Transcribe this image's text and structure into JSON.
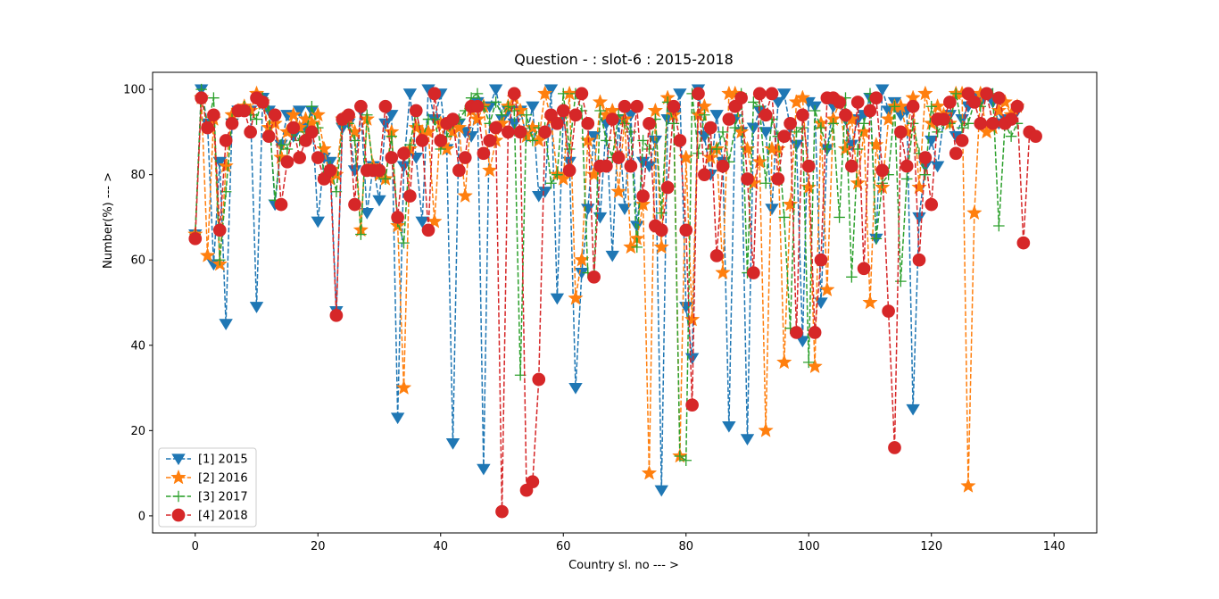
{
  "chart_data": {
    "type": "line",
    "title": "Question - : slot-6 : 2015-2018",
    "xlabel": "Country sl. no --- >",
    "ylabel": "Number(%) --- >",
    "xlim": [
      -6.95,
      146.95
    ],
    "ylim": [
      -4,
      104
    ],
    "xticks": [
      0,
      20,
      40,
      60,
      80,
      100,
      120,
      140
    ],
    "yticks": [
      0,
      20,
      40,
      60,
      80,
      100
    ],
    "legend_position": "lower-left",
    "grid": false,
    "series": [
      {
        "name": "[1] 2015",
        "color": "#1f77b4",
        "marker": "triangle-down",
        "x_start": 0,
        "values": [
          66,
          100,
          92,
          59,
          83,
          45,
          92,
          95,
          95,
          95,
          49,
          98,
          95,
          73,
          87,
          94,
          89,
          95,
          91,
          95,
          69,
          84,
          83,
          48,
          91,
          92,
          81,
          95,
          71,
          82,
          74,
          92,
          94,
          23,
          82,
          99,
          84,
          69,
          100,
          93,
          99,
          86,
          17,
          92,
          90,
          89,
          97,
          11,
          96,
          100,
          93,
          95,
          92,
          95,
          89,
          96,
          75,
          76,
          100,
          51,
          94,
          83,
          30,
          57,
          72,
          89,
          70,
          92,
          61,
          93,
          72,
          94,
          68,
          83,
          82,
          88,
          6,
          93,
          94,
          99,
          49,
          37,
          100,
          89,
          80,
          94,
          83,
          21,
          93,
          90,
          18,
          91,
          95,
          90,
          72,
          97,
          99,
          91,
          87,
          41,
          97,
          96,
          50,
          86,
          96,
          97,
          93,
          87,
          93,
          94,
          98,
          65,
          100,
          95,
          97,
          94,
          95,
          25,
          70,
          82,
          88,
          82,
          93,
          94,
          89,
          93,
          96,
          98,
          97,
          99,
          97,
          92,
          93,
          93,
          95
        ],
        "y_range": null
      },
      {
        "name": "[2] 2016",
        "color": "#ff7f0e",
        "marker": "star",
        "x_start": 0,
        "values": [
          66,
          98,
          61,
          93,
          59,
          82,
          94,
          95,
          96,
          95,
          99,
          97,
          91,
          92,
          84,
          90,
          94,
          91,
          93,
          92,
          94,
          86,
          79,
          80,
          93,
          93,
          90,
          67,
          93,
          82,
          80,
          79,
          90,
          68,
          30,
          86,
          91,
          90,
          90,
          69,
          92,
          86,
          90,
          91,
          75,
          95,
          93,
          96,
          81,
          88,
          92,
          96,
          98,
          95,
          89,
          91,
          88,
          99,
          93,
          80,
          79,
          99,
          51,
          60,
          88,
          80,
          97,
          94,
          95,
          76,
          93,
          63,
          65,
          73,
          10,
          95,
          63,
          98,
          94,
          14,
          84,
          46,
          94,
          96,
          84,
          86,
          57,
          99,
          99,
          90,
          86,
          78,
          83,
          20,
          86,
          86,
          36,
          73,
          97,
          98,
          77,
          35,
          92,
          53,
          93,
          97,
          86,
          93,
          78,
          90,
          50,
          87,
          77,
          93,
          96,
          96,
          90,
          98,
          77,
          99,
          92,
          96,
          94,
          92,
          99,
          99,
          7,
          71,
          99,
          90,
          91,
          95,
          97,
          94,
          96
        ],
        "y_range": null
      },
      {
        "name": "[3] 2017",
        "color": "#2ca02c",
        "marker": "plus",
        "x_start": 0,
        "values": [
          66,
          100,
          91,
          98,
          60,
          76,
          93,
          95,
          96,
          94,
          93,
          98,
          95,
          74,
          87,
          86,
          90,
          88,
          90,
          96,
          91,
          80,
          82,
          76,
          92,
          92,
          88,
          66,
          94,
          81,
          80,
          79,
          89,
          69,
          64,
          87,
          95,
          88,
          93,
          93,
          86,
          89,
          92,
          93,
          95,
          98,
          99,
          96,
          92,
          97,
          94,
          96,
          95,
          33,
          94,
          88,
          91,
          91,
          78,
          80,
          99,
          86,
          99,
          95,
          57,
          56,
          95,
          88,
          84,
          94,
          92,
          90,
          63,
          88,
          86,
          93,
          71,
          97,
          92,
          14,
          13,
          99,
          85,
          94,
          86,
          86,
          90,
          83,
          91,
          99,
          57,
          97,
          96,
          78,
          93,
          89,
          70,
          44,
          90,
          91,
          36,
          95,
          91,
          86,
          92,
          70,
          98,
          56,
          86,
          92,
          99,
          65,
          78,
          80,
          96,
          55,
          79,
          92,
          85,
          80,
          96,
          90,
          92,
          92,
          99,
          91,
          92,
          97,
          96,
          99,
          99,
          68,
          92,
          89,
          92
        ],
        "y_range": null
      },
      {
        "name": "[4] 2018",
        "color": "#d62728",
        "marker": "circle",
        "x_start": 0,
        "values": [
          65,
          98,
          91,
          94,
          67,
          88,
          92,
          95,
          95,
          90,
          98,
          97,
          89,
          94,
          73,
          83,
          91,
          84,
          88,
          90,
          84,
          79,
          81,
          47,
          93,
          94,
          73,
          96,
          81,
          81,
          81,
          96,
          84,
          70,
          85,
          75,
          95,
          88,
          67,
          99,
          88,
          92,
          93,
          81,
          84,
          96,
          96,
          85,
          88,
          91,
          1,
          90,
          99,
          90,
          6,
          8,
          32,
          90,
          94,
          92,
          95,
          81,
          94,
          99,
          92,
          56,
          82,
          82,
          93,
          84,
          96,
          82,
          96,
          75,
          92,
          68,
          67,
          77,
          96,
          88,
          67,
          26,
          99,
          80,
          91,
          61,
          82,
          93,
          96,
          98,
          79,
          57,
          99,
          94,
          99,
          79,
          89,
          92,
          43,
          94,
          82,
          43,
          60,
          98,
          98,
          97,
          94,
          82,
          97,
          58,
          95,
          98,
          81,
          48,
          16,
          90,
          82,
          96,
          60,
          84,
          73,
          93,
          93,
          97,
          85,
          88,
          99,
          97,
          92,
          99,
          92,
          98,
          92,
          93,
          96,
          64,
          90,
          89
        ],
        "y_range": null
      }
    ]
  }
}
